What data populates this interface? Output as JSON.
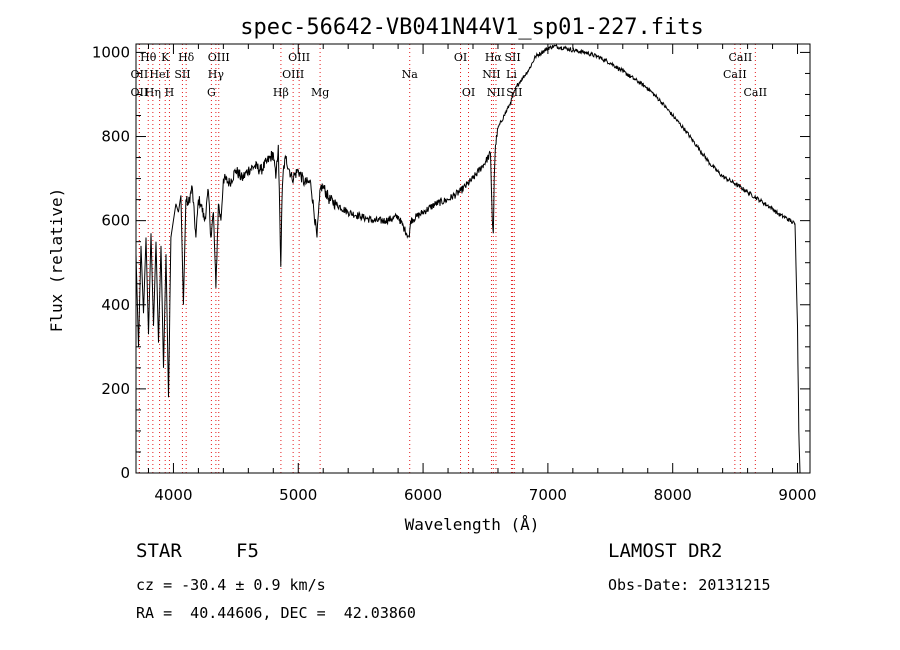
{
  "chart_data": {
    "type": "line",
    "title": "spec-56642-VB041N44V1_sp01-227.fits",
    "xlabel": "Wavelength (Å)",
    "ylabel": "Flux (relative)",
    "xlim": [
      3700,
      9100
    ],
    "ylim": [
      0,
      1020
    ],
    "xticks": [
      4000,
      5000,
      6000,
      7000,
      8000,
      9000
    ],
    "yticks": [
      0,
      200,
      400,
      600,
      800,
      1000
    ],
    "grid": false,
    "series": [
      {
        "x": [
          3700,
          3720,
          3740,
          3760,
          3780,
          3800,
          3820,
          3840,
          3860,
          3880,
          3900,
          3920,
          3940,
          3960,
          3980,
          4000,
          4020,
          4040,
          4060,
          4080,
          4100,
          4120,
          4150,
          4180,
          4200,
          4220,
          4250,
          4280,
          4300,
          4320,
          4340,
          4360,
          4380,
          4400,
          4450,
          4500,
          4550,
          4600,
          4650,
          4700,
          4750,
          4800,
          4820,
          4840,
          4860,
          4870,
          4880,
          4900,
          4950,
          5000,
          5050,
          5100,
          5150,
          5170,
          5180,
          5200,
          5250,
          5300,
          5400,
          5500,
          5600,
          5700,
          5800,
          5850,
          5890,
          5900,
          5950,
          6000,
          6100,
          6200,
          6300,
          6400,
          6450,
          6500,
          6540,
          6555,
          6563,
          6570,
          6580,
          6600,
          6650,
          6700,
          6750,
          6800,
          6850,
          6900,
          6950,
          7000,
          7050,
          7100,
          7150,
          7200,
          7300,
          7400,
          7500,
          7600,
          7700,
          7800,
          7900,
          8000,
          8100,
          8200,
          8300,
          8400,
          8500,
          8600,
          8700,
          8800,
          8850,
          8900,
          8950,
          8980,
          9000,
          9010,
          9020
        ],
        "y": [
          520,
          300,
          540,
          380,
          560,
          330,
          570,
          350,
          550,
          310,
          540,
          250,
          520,
          180,
          560,
          600,
          640,
          620,
          660,
          400,
          650,
          640,
          680,
          560,
          650,
          640,
          600,
          670,
          560,
          620,
          440,
          640,
          600,
          700,
          690,
          720,
          700,
          720,
          730,
          720,
          740,
          760,
          700,
          780,
          490,
          650,
          720,
          750,
          700,
          720,
          690,
          690,
          560,
          650,
          680,
          680,
          650,
          640,
          620,
          610,
          600,
          600,
          610,
          580,
          560,
          600,
          610,
          620,
          640,
          650,
          670,
          700,
          720,
          740,
          760,
          600,
          570,
          700,
          780,
          820,
          850,
          880,
          920,
          940,
          960,
          990,
          1000,
          1010,
          1015,
          1012,
          1010,
          1005,
          1000,
          990,
          975,
          955,
          935,
          915,
          885,
          850,
          815,
          775,
          735,
          705,
          688,
          668,
          648,
          628,
          615,
          608,
          598,
          592,
          350,
          100,
          0
        ]
      }
    ],
    "spectral_lines": [
      {
        "name": "Hθ",
        "x": 3798,
        "row": 0
      },
      {
        "name": "K",
        "x": 3934,
        "row": 0
      },
      {
        "name": "Hδ",
        "x": 4102,
        "row": 0
      },
      {
        "name": "OIII",
        "x": 4363,
        "row": 0
      },
      {
        "name": "OIII",
        "x": 5007,
        "row": 0
      },
      {
        "name": "OI",
        "x": 6300,
        "row": 0
      },
      {
        "name": "Hα",
        "x": 6563,
        "row": 0
      },
      {
        "name": "SII",
        "x": 6717,
        "row": 0
      },
      {
        "name": "CaII",
        "x": 8542,
        "row": 0
      },
      {
        "name": "OII",
        "x": 3727,
        "row": 1
      },
      {
        "name": "HeI",
        "x": 3889,
        "row": 1
      },
      {
        "name": "SII",
        "x": 4072,
        "row": 1
      },
      {
        "name": "Hγ",
        "x": 4340,
        "row": 1
      },
      {
        "name": "OIII",
        "x": 4959,
        "row": 1
      },
      {
        "name": "Na",
        "x": 5893,
        "row": 1
      },
      {
        "name": "NII",
        "x": 6548,
        "row": 1
      },
      {
        "name": "Li",
        "x": 6708,
        "row": 1
      },
      {
        "name": "CaII",
        "x": 8498,
        "row": 1
      },
      {
        "name": "OII",
        "x": 3727,
        "row": 2
      },
      {
        "name": "Hη",
        "x": 3835,
        "row": 2
      },
      {
        "name": "H",
        "x": 3968,
        "row": 2
      },
      {
        "name": "G",
        "x": 4304,
        "row": 2
      },
      {
        "name": "Hβ",
        "x": 4861,
        "row": 2
      },
      {
        "name": "Mg",
        "x": 5175,
        "row": 2
      },
      {
        "name": "OI",
        "x": 6364,
        "row": 2
      },
      {
        "name": "NII",
        "x": 6584,
        "row": 2
      },
      {
        "name": "SII",
        "x": 6731,
        "row": 2
      },
      {
        "name": "CaII",
        "x": 8662,
        "row": 2
      }
    ],
    "line_marker_color": "#e41a1c",
    "spectrum_color": "#000000"
  },
  "info": {
    "object_class": "STAR",
    "subclass": "F5",
    "survey": "LAMOST DR2",
    "cz": "cz = -30.4 ± 0.9 km/s",
    "obs_date": "Obs-Date: 20131215",
    "coords": "RA =  40.44606, DEC =  42.03860"
  }
}
